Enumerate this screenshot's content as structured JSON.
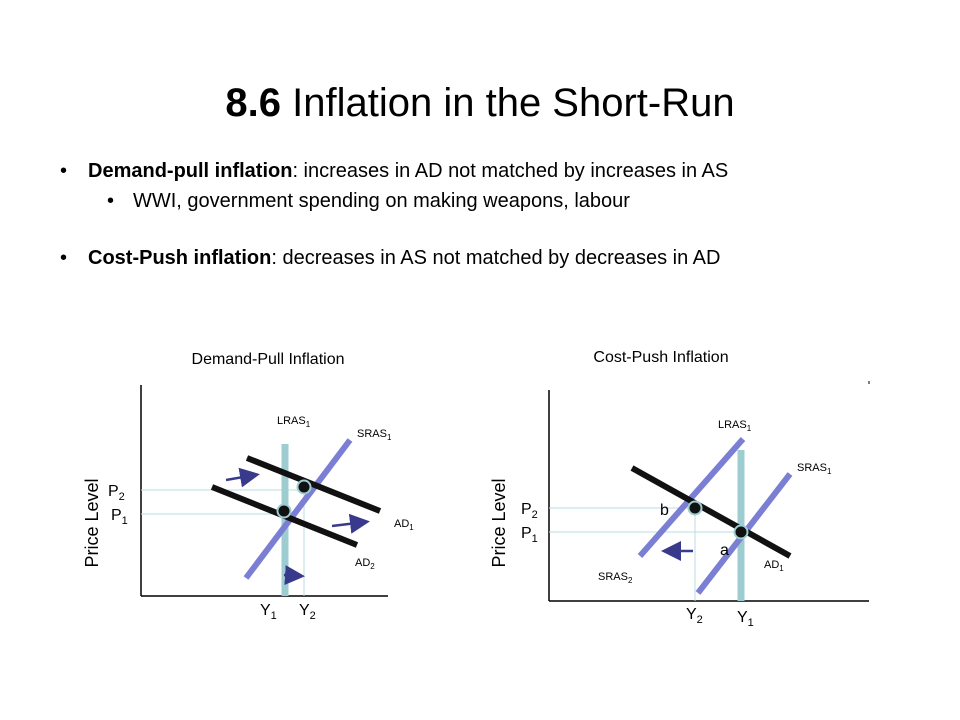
{
  "slide": {
    "title_number": "8.6",
    "title_text": "Inflation in the Short-Run",
    "bullets": [
      {
        "bold": "Demand-pull inflation",
        "rest": ": increases in AD not matched by increases in AS"
      },
      {
        "bold": "",
        "rest": "WWI, government spending on making weapons, labour"
      },
      {
        "bold": "Cost-Push inflation",
        "rest": ": decreases in AS not matched by decreases in AD"
      }
    ]
  },
  "diagram_left": {
    "title": "Demand-Pull Inflation",
    "ylabel": "Price Level",
    "curves": {
      "lras": {
        "name": "LRAS",
        "sub": "1"
      },
      "sras": {
        "name": "SRAS",
        "sub": "1"
      },
      "ad1": {
        "name": "AD",
        "sub": "1"
      },
      "ad2": {
        "name": "AD",
        "sub": "2"
      }
    },
    "price_ticks": [
      {
        "name": "P",
        "sub": "2"
      },
      {
        "name": "P",
        "sub": "1"
      }
    ],
    "output_ticks": [
      {
        "name": "Y",
        "sub": "1"
      },
      {
        "name": "Y",
        "sub": "2"
      }
    ]
  },
  "diagram_right": {
    "title": "Cost-Push Inflation",
    "ylabel": "Price Level",
    "curves": {
      "lras": {
        "name": "LRAS",
        "sub": "1"
      },
      "sras1": {
        "name": "SRAS",
        "sub": "1"
      },
      "sras2": {
        "name": "SRAS",
        "sub": "2"
      },
      "ad1": {
        "name": "AD",
        "sub": "1"
      }
    },
    "points": {
      "a": "a",
      "b": "b"
    },
    "price_ticks": [
      {
        "name": "P",
        "sub": "2"
      },
      {
        "name": "P",
        "sub": "1"
      }
    ],
    "output_ticks": [
      {
        "name": "Y",
        "sub": "2"
      },
      {
        "name": "Y",
        "sub": "1"
      }
    ]
  },
  "colors": {
    "lras": "#9ecdd1",
    "sras": "#7b7fd4",
    "ad": "#111111",
    "arrow": "#3a3a8c",
    "guide": "#b9dde0"
  }
}
